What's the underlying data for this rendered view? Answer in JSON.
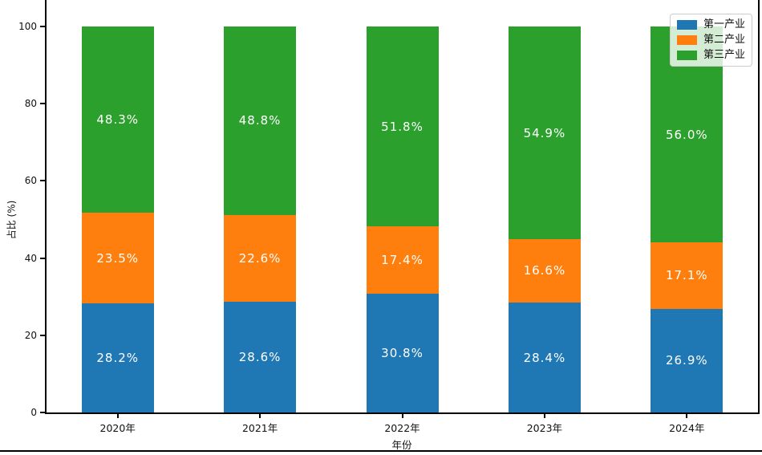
{
  "chart_data": {
    "type": "bar",
    "stacked": true,
    "xlabel": "年份",
    "ylabel": "占比 (%)",
    "ylim": [
      0,
      100
    ],
    "yticks": [
      0,
      20,
      40,
      60,
      80,
      100
    ],
    "grid": false,
    "legend_position": "upper right",
    "categories": [
      "2020年",
      "2021年",
      "2022年",
      "2023年",
      "2024年"
    ],
    "series": [
      {
        "name": "第一产业",
        "color": "#1f77b4",
        "values": [
          28.2,
          28.6,
          30.8,
          28.4,
          26.9
        ],
        "labels": [
          "28.2%",
          "28.6%",
          "30.8%",
          "28.4%",
          "26.9%"
        ]
      },
      {
        "name": "第二产业",
        "color": "#ff7f0e",
        "values": [
          23.5,
          22.6,
          17.4,
          16.6,
          17.1
        ],
        "labels": [
          "23.5%",
          "22.6%",
          "17.4%",
          "16.6%",
          "17.1%"
        ]
      },
      {
        "name": "第三产业",
        "color": "#2ca02c",
        "values": [
          48.3,
          48.8,
          51.8,
          54.9,
          56.0
        ],
        "labels": [
          "48.3%",
          "48.8%",
          "51.8%",
          "54.9%",
          "56.0%"
        ]
      }
    ]
  }
}
